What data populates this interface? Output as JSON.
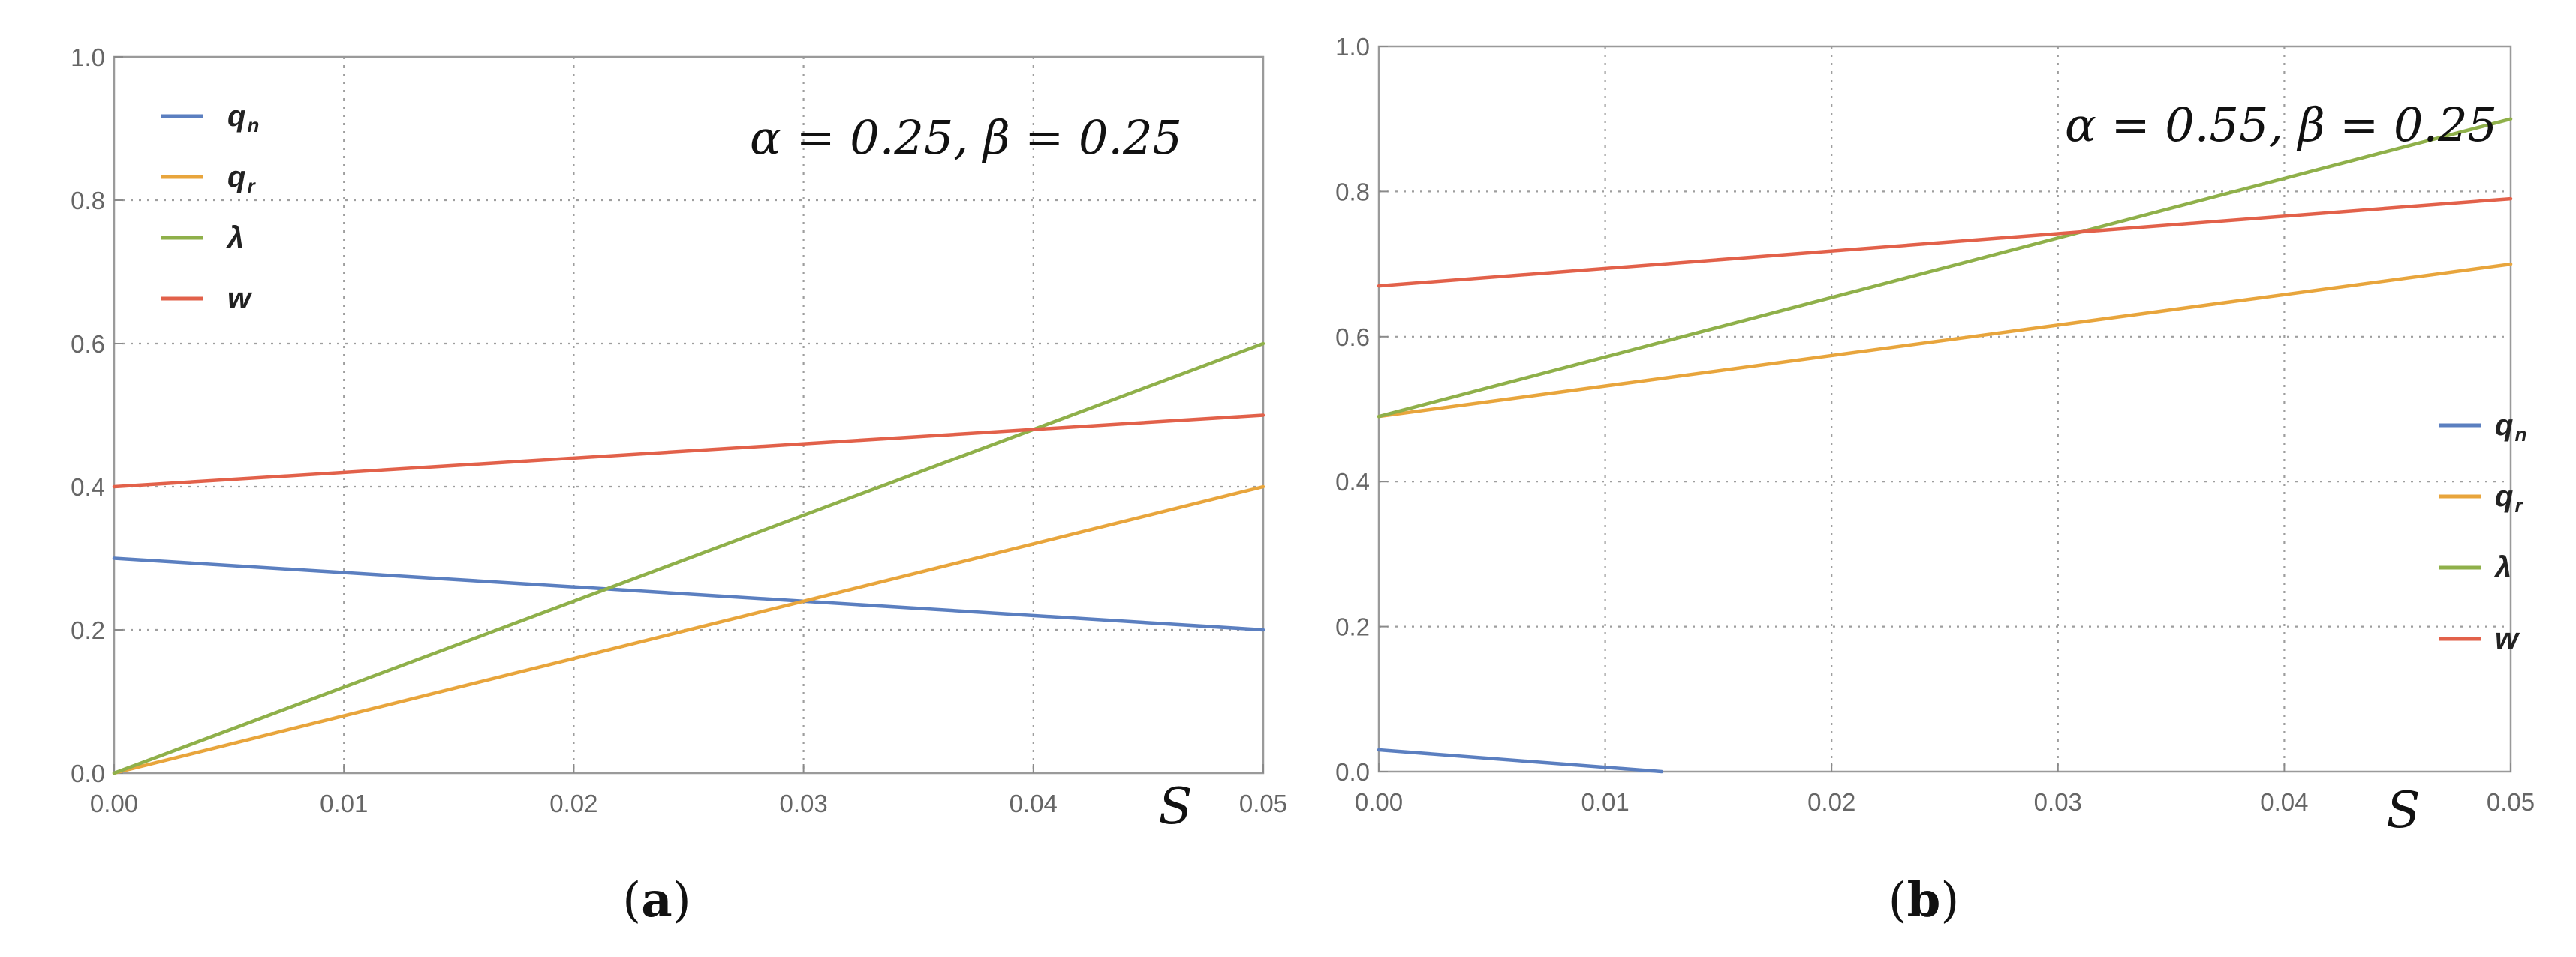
{
  "chart_data": [
    {
      "type": "line",
      "panel_label": "a",
      "annotation": "α = 0.25, β = 0.25",
      "x_symbol": "S",
      "xlim": [
        0,
        0.05
      ],
      "ylim": [
        0,
        1.0
      ],
      "xticks": [
        "0.00",
        "0.01",
        "0.02",
        "0.03",
        "0.04",
        "0.05"
      ],
      "yticks": [
        "0.0",
        "0.2",
        "0.4",
        "0.6",
        "0.8",
        "1.0"
      ],
      "grid": true,
      "legend_position": "top-left",
      "series": [
        {
          "name": "q",
          "subscript": "n",
          "color": "#5b7fc0",
          "x": [
            0,
            0.05
          ],
          "y": [
            0.3,
            0.2
          ]
        },
        {
          "name": "q",
          "subscript": "r",
          "color": "#e8a53c",
          "x": [
            0,
            0.05
          ],
          "y": [
            0.0,
            0.4
          ]
        },
        {
          "name": "λ",
          "subscript": "",
          "color": "#8fb04a",
          "x": [
            0,
            0.05
          ],
          "y": [
            0.0,
            0.6
          ]
        },
        {
          "name": "w",
          "subscript": "",
          "color": "#e2614a",
          "x": [
            0,
            0.05
          ],
          "y": [
            0.4,
            0.5
          ]
        }
      ]
    },
    {
      "type": "line",
      "panel_label": "b",
      "annotation": "α = 0.55, β = 0.25",
      "x_symbol": "S",
      "xlim": [
        0,
        0.05
      ],
      "ylim": [
        0,
        1.0
      ],
      "xticks": [
        "0.00",
        "0.01",
        "0.02",
        "0.03",
        "0.04",
        "0.05"
      ],
      "yticks": [
        "0.0",
        "0.2",
        "0.4",
        "0.6",
        "0.8",
        "1.0"
      ],
      "grid": true,
      "legend_position": "right",
      "series": [
        {
          "name": "q",
          "subscript": "n",
          "color": "#5b7fc0",
          "x": [
            0,
            0.0125
          ],
          "y": [
            0.03,
            0.0
          ]
        },
        {
          "name": "q",
          "subscript": "r",
          "color": "#e8a53c",
          "x": [
            0,
            0.05
          ],
          "y": [
            0.49,
            0.7
          ]
        },
        {
          "name": "λ",
          "subscript": "",
          "color": "#8fb04a",
          "x": [
            0,
            0.05
          ],
          "y": [
            0.49,
            0.9
          ]
        },
        {
          "name": "w",
          "subscript": "",
          "color": "#e2614a",
          "x": [
            0,
            0.05
          ],
          "y": [
            0.67,
            0.79
          ]
        }
      ]
    }
  ]
}
